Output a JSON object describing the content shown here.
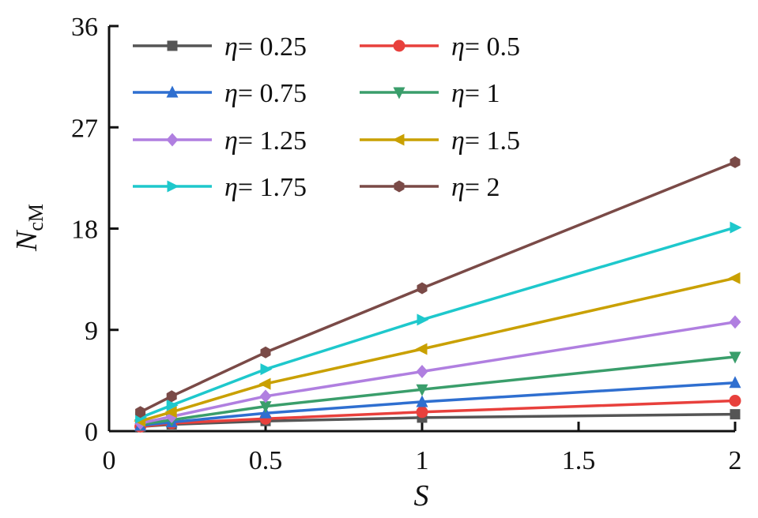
{
  "chart_data": {
    "type": "line",
    "x": [
      0.1,
      0.2,
      0.5,
      1,
      2
    ],
    "xlim": [
      0,
      2
    ],
    "ylim": [
      0,
      36
    ],
    "xticks": [
      "0",
      "0.5",
      "1",
      "1.5",
      "2"
    ],
    "yticks": [
      "0",
      "9",
      "18",
      "27",
      "36"
    ],
    "xlabel": "S",
    "ylabel_main": "N",
    "ylabel_sub": "cM",
    "grid": false,
    "legend_position": "top-left",
    "series": [
      {
        "name": "η= 0.25",
        "eta_label": "η",
        "value_label": "= 0.25",
        "color": "#555555",
        "marker": "square",
        "values": [
          0.4,
          0.6,
          0.9,
          1.2,
          1.5
        ]
      },
      {
        "name": "η= 0.5",
        "eta_label": "η",
        "value_label": "= 0.5",
        "color": "#e8403c",
        "marker": "circle",
        "values": [
          0.4,
          0.7,
          1.1,
          1.7,
          2.7
        ]
      },
      {
        "name": "η= 0.75",
        "eta_label": "η",
        "value_label": "= 0.75",
        "color": "#2f6fd0",
        "marker": "triangle-up",
        "values": [
          0.5,
          0.8,
          1.6,
          2.6,
          4.3
        ]
      },
      {
        "name": "η= 1",
        "eta_label": "η",
        "value_label": "= 1",
        "color": "#3a9e6b",
        "marker": "triangle-down",
        "values": [
          0.6,
          1.0,
          2.2,
          3.7,
          6.6
        ]
      },
      {
        "name": "η= 1.25",
        "eta_label": "η",
        "value_label": "= 1.25",
        "color": "#b07fe0",
        "marker": "diamond",
        "values": [
          0.7,
          1.3,
          3.1,
          5.3,
          9.7
        ]
      },
      {
        "name": "η= 1.5",
        "eta_label": "η",
        "value_label": "= 1.5",
        "color": "#c9a000",
        "marker": "triangle-left",
        "values": [
          0.9,
          1.7,
          4.2,
          7.3,
          13.6
        ]
      },
      {
        "name": "η= 1.75",
        "eta_label": "η",
        "value_label": "= 1.75",
        "color": "#1ec8cc",
        "marker": "triangle-right",
        "values": [
          1.2,
          2.3,
          5.5,
          9.9,
          18.1
        ]
      },
      {
        "name": "η= 2",
        "eta_label": "η",
        "value_label": "= 2",
        "color": "#7a4a47",
        "marker": "hexagon",
        "values": [
          1.7,
          3.1,
          7.0,
          12.7,
          23.9
        ]
      }
    ]
  }
}
